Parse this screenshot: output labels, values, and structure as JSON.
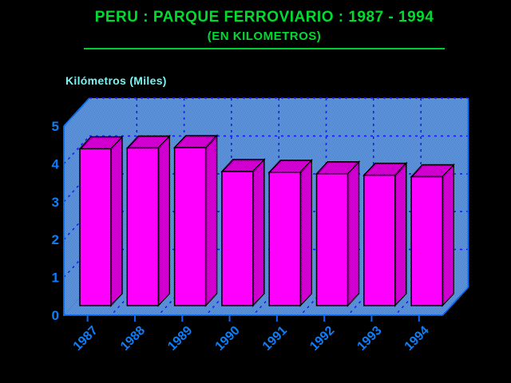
{
  "header": {
    "title": "PERU : PARQUE FERROVIARIO : 1987 - 1994",
    "subtitle": "(EN KILOMETROS)"
  },
  "chart": {
    "axis_title": "Kilómetros (Miles)"
  },
  "colors": {
    "background": "#000000",
    "title_green": "#00db30",
    "underline_green": "#00cc33",
    "axis_title_cyan": "#79f2f2",
    "axis_label_blue": "#0d7ef8",
    "edge_blue": "#0a6cf5",
    "grid_blue": "#1a1aff",
    "wall_light": "#74aaf2",
    "wall_dark": "#3a6ed2",
    "bar_front_magenta": "#ff00ff",
    "bar_shade_dark": "#250127",
    "bar_outline": "#000000"
  },
  "chart_data": {
    "type": "bar",
    "style": "3d-column",
    "title": "PERU : PARQUE FERROVIARIO : 1987 - 1994",
    "subtitle": "(EN KILOMETROS)",
    "ylabel": "Kilómetros (Miles)",
    "xlabel": "",
    "categories": [
      "1987",
      "1988",
      "1989",
      "1990",
      "1991",
      "1992",
      "1993",
      "1994"
    ],
    "values": [
      4.4,
      4.42,
      4.43,
      3.8,
      3.78,
      3.74,
      3.7,
      3.66
    ],
    "ylim": [
      0,
      5
    ],
    "yticks": [
      0,
      1,
      2,
      3,
      4,
      5
    ],
    "grid": "dashed-blue",
    "legend": "none",
    "x_tick_label_rotation": -45
  }
}
